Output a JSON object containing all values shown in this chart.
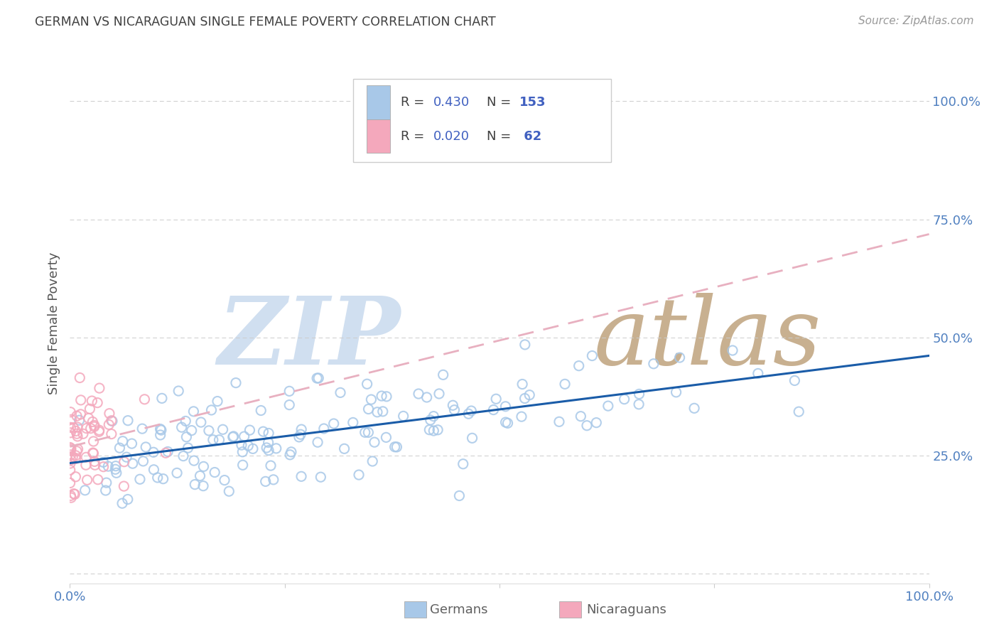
{
  "title": "GERMAN VS NICARAGUAN SINGLE FEMALE POVERTY CORRELATION CHART",
  "source": "Source: ZipAtlas.com",
  "ylabel": "Single Female Poverty",
  "legend_german": {
    "R": "0.430",
    "N": "153"
  },
  "legend_nicaraguan": {
    "R": "0.020",
    "N": "62"
  },
  "german_color": "#a8c8e8",
  "nicaraguan_color": "#f4a8bc",
  "german_line_color": "#1a5ca8",
  "nicaraguan_line_color": "#e8b0c0",
  "watermark_zip": "ZIP",
  "watermark_atlas": "atlas",
  "watermark_color": "#d0dff0",
  "watermark_atlas_color": "#c8b090",
  "background_color": "#ffffff",
  "grid_color": "#cccccc",
  "title_color": "#404040",
  "axis_label_color": "#5080c0",
  "legend_text_color": "#404040",
  "legend_N_color": "#e03030",
  "legend_RN_color": "#4060c0",
  "bottom_legend_color": "#606060"
}
